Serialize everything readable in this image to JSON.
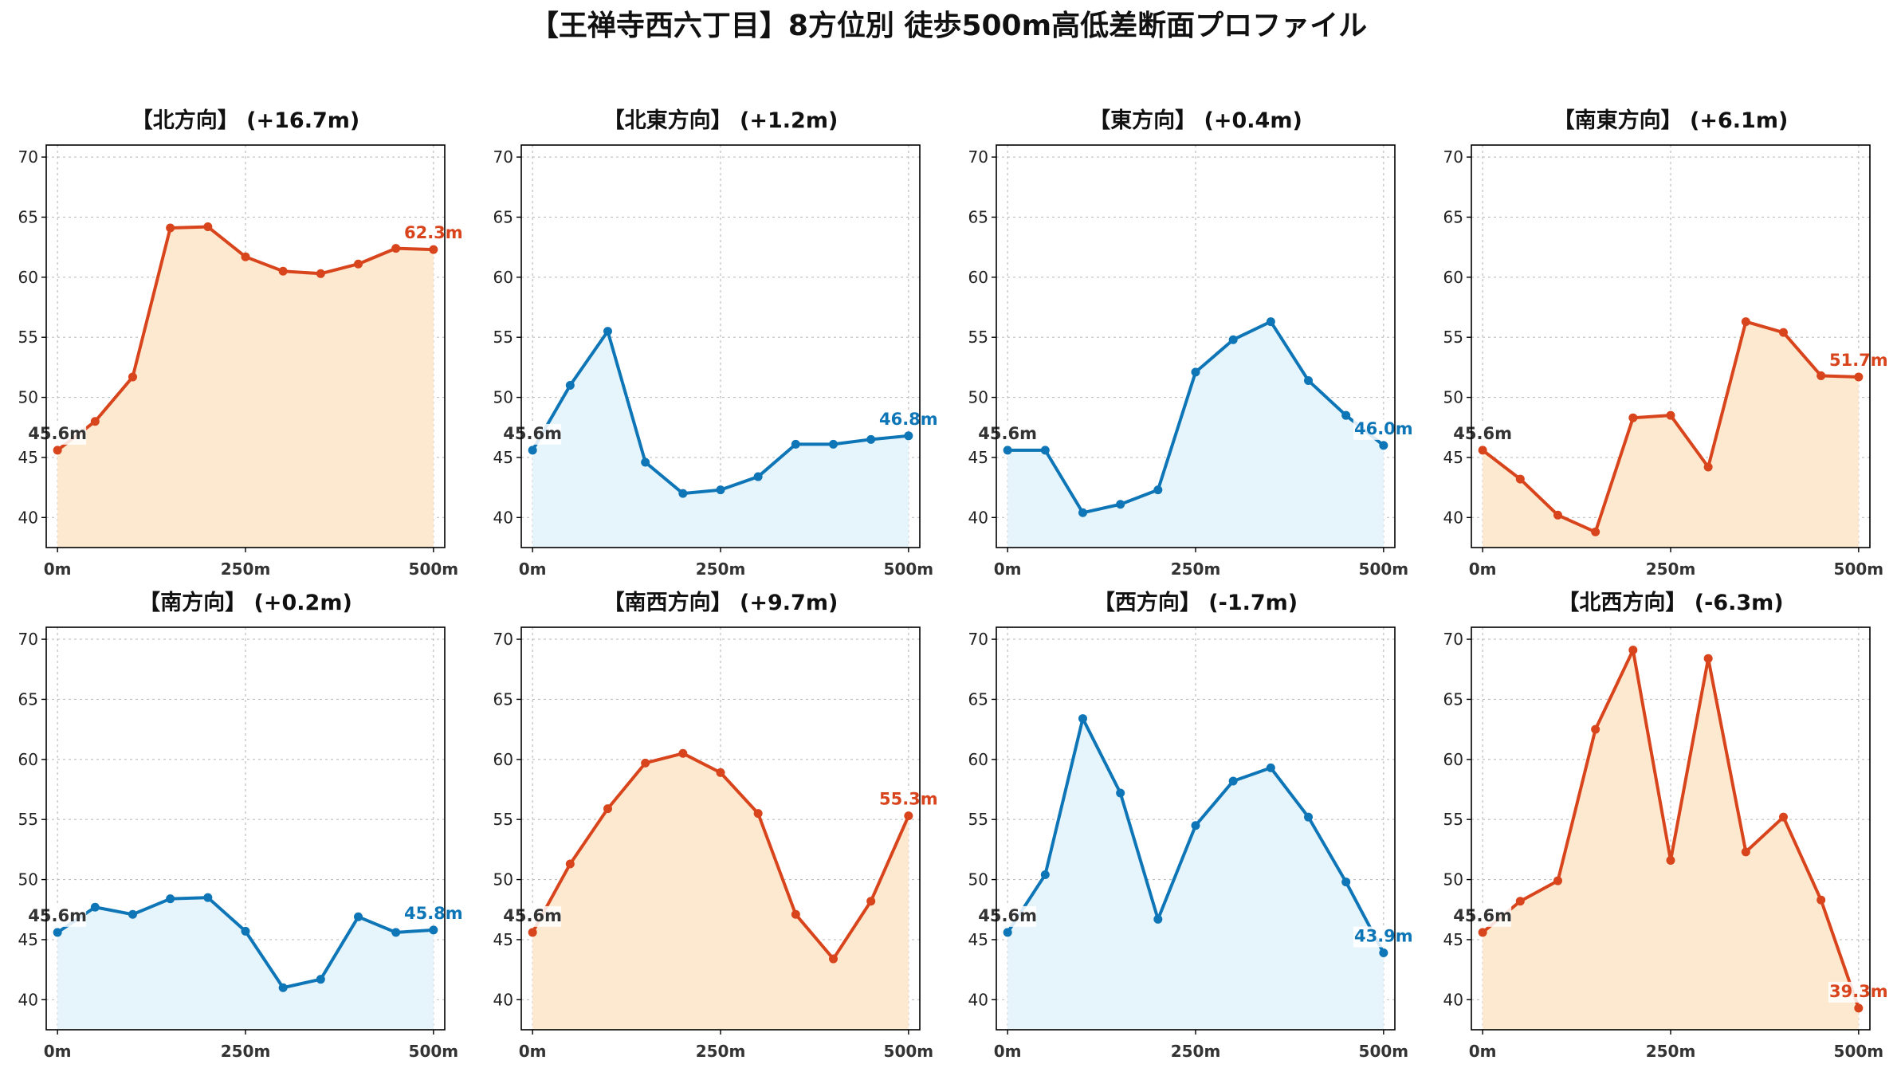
{
  "figure": {
    "title": "【王禅寺西六丁目】8方位別 徒歩500m高低差断面プロファイル"
  },
  "palette": {
    "up_line": "#d8441c",
    "up_fill": "#fde9cf",
    "down_line": "#0e76b7",
    "down_fill": "#e6f4fb"
  },
  "chart_data": [
    {
      "type": "area",
      "title": "【北方向】 (+16.7m)",
      "trend": "up",
      "x": [
        0,
        50,
        100,
        150,
        200,
        250,
        300,
        350,
        400,
        450,
        500
      ],
      "y": [
        45.6,
        48.0,
        51.7,
        64.1,
        64.2,
        61.7,
        60.5,
        60.3,
        61.1,
        62.4,
        62.3
      ],
      "start_label": "45.6m",
      "end_label": "62.3m",
      "xticks": [
        "0m",
        "250m",
        "500m"
      ],
      "yticks": [
        "40",
        "45",
        "50",
        "55",
        "60",
        "65",
        "70"
      ],
      "xlim": [
        -15,
        515
      ],
      "ylim": [
        37.5,
        71
      ],
      "grid": true
    },
    {
      "type": "area",
      "title": "【北東方向】 (+1.2m)",
      "trend": "down",
      "x": [
        0,
        50,
        100,
        150,
        200,
        250,
        300,
        350,
        400,
        450,
        500
      ],
      "y": [
        45.6,
        51.0,
        55.5,
        44.6,
        42.0,
        42.3,
        43.4,
        46.1,
        46.1,
        46.5,
        46.8
      ],
      "start_label": "45.6m",
      "end_label": "46.8m",
      "xticks": [
        "0m",
        "250m",
        "500m"
      ],
      "yticks": [
        "40",
        "45",
        "50",
        "55",
        "60",
        "65",
        "70"
      ],
      "xlim": [
        -15,
        515
      ],
      "ylim": [
        37.5,
        71
      ],
      "grid": true
    },
    {
      "type": "area",
      "title": "【東方向】 (+0.4m)",
      "trend": "down",
      "x": [
        0,
        50,
        100,
        150,
        200,
        250,
        300,
        350,
        400,
        450,
        500
      ],
      "y": [
        45.6,
        45.6,
        40.4,
        41.1,
        42.3,
        52.1,
        54.8,
        56.3,
        51.4,
        48.5,
        46.0
      ],
      "start_label": "45.6m",
      "end_label": "46.0m",
      "xticks": [
        "0m",
        "250m",
        "500m"
      ],
      "yticks": [
        "40",
        "45",
        "50",
        "55",
        "60",
        "65",
        "70"
      ],
      "xlim": [
        -15,
        515
      ],
      "ylim": [
        37.5,
        71
      ],
      "grid": true
    },
    {
      "type": "area",
      "title": "【南東方向】 (+6.1m)",
      "trend": "up",
      "x": [
        0,
        50,
        100,
        150,
        200,
        250,
        300,
        350,
        400,
        450,
        500
      ],
      "y": [
        45.6,
        43.2,
        40.2,
        38.8,
        48.3,
        48.5,
        44.2,
        56.3,
        55.4,
        51.8,
        51.7
      ],
      "start_label": "45.6m",
      "end_label": "51.7m",
      "xticks": [
        "0m",
        "250m",
        "500m"
      ],
      "yticks": [
        "40",
        "45",
        "50",
        "55",
        "60",
        "65",
        "70"
      ],
      "xlim": [
        -15,
        515
      ],
      "ylim": [
        37.5,
        71
      ],
      "grid": true
    },
    {
      "type": "area",
      "title": "【南方向】 (+0.2m)",
      "trend": "down",
      "x": [
        0,
        50,
        100,
        150,
        200,
        250,
        300,
        350,
        400,
        450,
        500
      ],
      "y": [
        45.6,
        47.7,
        47.1,
        48.4,
        48.5,
        45.7,
        41.0,
        41.7,
        46.9,
        45.6,
        45.8
      ],
      "start_label": "45.6m",
      "end_label": "45.8m",
      "xticks": [
        "0m",
        "250m",
        "500m"
      ],
      "yticks": [
        "40",
        "45",
        "50",
        "55",
        "60",
        "65",
        "70"
      ],
      "xlim": [
        -15,
        515
      ],
      "ylim": [
        37.5,
        71
      ],
      "grid": true
    },
    {
      "type": "area",
      "title": "【南西方向】 (+9.7m)",
      "trend": "up",
      "x": [
        0,
        50,
        100,
        150,
        200,
        250,
        300,
        350,
        400,
        450,
        500
      ],
      "y": [
        45.6,
        51.3,
        55.9,
        59.7,
        60.5,
        58.9,
        55.5,
        47.1,
        43.4,
        48.2,
        55.3
      ],
      "start_label": "45.6m",
      "end_label": "55.3m",
      "xticks": [
        "0m",
        "250m",
        "500m"
      ],
      "yticks": [
        "40",
        "45",
        "50",
        "55",
        "60",
        "65",
        "70"
      ],
      "xlim": [
        -15,
        515
      ],
      "ylim": [
        37.5,
        71
      ],
      "grid": true
    },
    {
      "type": "area",
      "title": "【西方向】 (-1.7m)",
      "trend": "down",
      "x": [
        0,
        50,
        100,
        150,
        200,
        250,
        300,
        350,
        400,
        450,
        500
      ],
      "y": [
        45.6,
        50.4,
        63.4,
        57.2,
        46.7,
        54.5,
        58.2,
        59.3,
        55.2,
        49.8,
        43.9
      ],
      "start_label": "45.6m",
      "end_label": "43.9m",
      "xticks": [
        "0m",
        "250m",
        "500m"
      ],
      "yticks": [
        "40",
        "45",
        "50",
        "55",
        "60",
        "65",
        "70"
      ],
      "xlim": [
        -15,
        515
      ],
      "ylim": [
        37.5,
        71
      ],
      "grid": true
    },
    {
      "type": "area",
      "title": "【北西方向】 (-6.3m)",
      "trend": "up",
      "x": [
        0,
        50,
        100,
        150,
        200,
        250,
        300,
        350,
        400,
        450,
        500
      ],
      "y": [
        45.6,
        48.2,
        49.9,
        62.5,
        69.1,
        51.6,
        68.4,
        52.3,
        55.2,
        48.3,
        39.3
      ],
      "start_label": "45.6m",
      "end_label": "39.3m",
      "xticks": [
        "0m",
        "250m",
        "500m"
      ],
      "yticks": [
        "40",
        "45",
        "50",
        "55",
        "60",
        "65",
        "70"
      ],
      "xlim": [
        -15,
        515
      ],
      "ylim": [
        37.5,
        71
      ],
      "grid": true
    }
  ]
}
